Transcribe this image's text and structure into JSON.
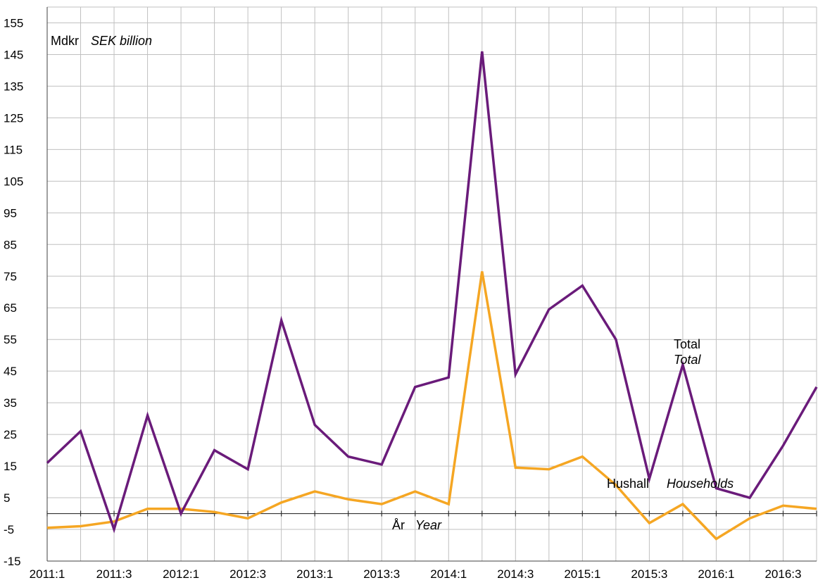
{
  "chart_data": {
    "type": "line",
    "x": [
      "2011:1",
      "2011:2",
      "2011:3",
      "2011:4",
      "2012:1",
      "2012:2",
      "2012:3",
      "2012:4",
      "2013:1",
      "2013:2",
      "2013:3",
      "2013:4",
      "2014:1",
      "2014:2",
      "2014:3",
      "2014:4",
      "2015:1",
      "2015:2",
      "2015:3",
      "2015:4",
      "2016:1",
      "2016:2",
      "2016:3",
      "2016:4"
    ],
    "x_tick_labels": [
      "2011:1",
      "2011:3",
      "2012:1",
      "2012:3",
      "2013:1",
      "2013:3",
      "2014:1",
      "2014:3",
      "2015:1",
      "2015:3",
      "2016:1",
      "2016:3"
    ],
    "y_ticks": [
      -15,
      -5,
      5,
      15,
      25,
      35,
      45,
      55,
      65,
      75,
      85,
      95,
      105,
      115,
      125,
      135,
      145,
      155
    ],
    "ylim": [
      -15,
      160
    ],
    "grid": true,
    "series": [
      {
        "name": "Total",
        "name_italic": "Total",
        "color": "#6a1b7a",
        "values": [
          16,
          26,
          -5,
          31,
          0,
          20,
          14,
          61,
          28,
          18,
          15.5,
          40,
          43,
          146,
          44,
          64.5,
          72,
          55,
          11,
          47,
          8,
          5,
          21.5,
          40
        ]
      },
      {
        "name": "Hushall",
        "name_italic": "Households",
        "color": "#f5a623",
        "values": [
          -4.5,
          -4,
          -2.5,
          1.5,
          1.5,
          0.5,
          -1.5,
          3.5,
          7,
          4.5,
          3,
          7,
          3,
          76.5,
          14.5,
          14,
          18,
          9,
          -3,
          3,
          -8,
          -1.5,
          2.5,
          1.5
        ]
      }
    ],
    "ylabel": "Mdkr",
    "ylabel_italic": "SEK billion",
    "xlabel": "År",
    "xlabel_italic": "Year"
  }
}
